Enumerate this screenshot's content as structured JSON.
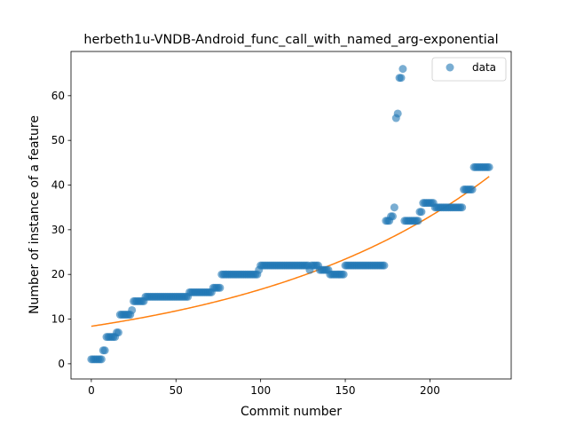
{
  "chart_data": {
    "type": "scatter",
    "title": "herbeth1u-VNDB-Android_func_call_with_named_arg-exponential",
    "xlabel": "Commit number",
    "ylabel": "Number of instance of a feature",
    "xlim": [
      -12,
      248
    ],
    "ylim": [
      -3.4,
      69.9
    ],
    "xticks": [
      0,
      50,
      100,
      150,
      200
    ],
    "yticks": [
      0,
      10,
      20,
      30,
      40,
      50,
      60
    ],
    "legend_position": "top-right",
    "grid": false,
    "colors": {
      "data": "#1f77b4",
      "fit": "#ff7f0e"
    },
    "series": [
      {
        "name": "data",
        "kind": "scatter",
        "points": [
          [
            0,
            1
          ],
          [
            1,
            1
          ],
          [
            2,
            1
          ],
          [
            3,
            1
          ],
          [
            4,
            1
          ],
          [
            5,
            1
          ],
          [
            6,
            1
          ],
          [
            7,
            3
          ],
          [
            8,
            3
          ],
          [
            9,
            6
          ],
          [
            10,
            6
          ],
          [
            11,
            6
          ],
          [
            12,
            6
          ],
          [
            13,
            6
          ],
          [
            14,
            6
          ],
          [
            15,
            7
          ],
          [
            16,
            7
          ],
          [
            17,
            11
          ],
          [
            18,
            11
          ],
          [
            19,
            11
          ],
          [
            20,
            11
          ],
          [
            21,
            11
          ],
          [
            22,
            11
          ],
          [
            23,
            11
          ],
          [
            24,
            12
          ],
          [
            25,
            14
          ],
          [
            26,
            14
          ],
          [
            27,
            14
          ],
          [
            28,
            14
          ],
          [
            29,
            14
          ],
          [
            30,
            14
          ],
          [
            31,
            14
          ],
          [
            32,
            15
          ],
          [
            33,
            15
          ],
          [
            34,
            15
          ],
          [
            35,
            15
          ],
          [
            36,
            15
          ],
          [
            37,
            15
          ],
          [
            38,
            15
          ],
          [
            39,
            15
          ],
          [
            40,
            15
          ],
          [
            41,
            15
          ],
          [
            42,
            15
          ],
          [
            43,
            15
          ],
          [
            44,
            15
          ],
          [
            45,
            15
          ],
          [
            46,
            15
          ],
          [
            47,
            15
          ],
          [
            48,
            15
          ],
          [
            49,
            15
          ],
          [
            50,
            15
          ],
          [
            51,
            15
          ],
          [
            52,
            15
          ],
          [
            53,
            15
          ],
          [
            54,
            15
          ],
          [
            55,
            15
          ],
          [
            56,
            15
          ],
          [
            57,
            15
          ],
          [
            58,
            16
          ],
          [
            59,
            16
          ],
          [
            60,
            16
          ],
          [
            61,
            16
          ],
          [
            62,
            16
          ],
          [
            63,
            16
          ],
          [
            64,
            16
          ],
          [
            65,
            16
          ],
          [
            66,
            16
          ],
          [
            67,
            16
          ],
          [
            68,
            16
          ],
          [
            69,
            16
          ],
          [
            70,
            16
          ],
          [
            71,
            16
          ],
          [
            72,
            17
          ],
          [
            73,
            17
          ],
          [
            74,
            17
          ],
          [
            75,
            17
          ],
          [
            76,
            17
          ],
          [
            77,
            20
          ],
          [
            78,
            20
          ],
          [
            79,
            20
          ],
          [
            80,
            20
          ],
          [
            81,
            20
          ],
          [
            82,
            20
          ],
          [
            83,
            20
          ],
          [
            84,
            20
          ],
          [
            85,
            20
          ],
          [
            86,
            20
          ],
          [
            87,
            20
          ],
          [
            88,
            20
          ],
          [
            89,
            20
          ],
          [
            90,
            20
          ],
          [
            91,
            20
          ],
          [
            92,
            20
          ],
          [
            93,
            20
          ],
          [
            94,
            20
          ],
          [
            95,
            20
          ],
          [
            96,
            20
          ],
          [
            97,
            20
          ],
          [
            98,
            20
          ],
          [
            99,
            21
          ],
          [
            100,
            22
          ],
          [
            101,
            22
          ],
          [
            102,
            22
          ],
          [
            103,
            22
          ],
          [
            104,
            22
          ],
          [
            105,
            22
          ],
          [
            106,
            22
          ],
          [
            107,
            22
          ],
          [
            108,
            22
          ],
          [
            109,
            22
          ],
          [
            110,
            22
          ],
          [
            111,
            22
          ],
          [
            112,
            22
          ],
          [
            113,
            22
          ],
          [
            114,
            22
          ],
          [
            115,
            22
          ],
          [
            116,
            22
          ],
          [
            117,
            22
          ],
          [
            118,
            22
          ],
          [
            119,
            22
          ],
          [
            120,
            22
          ],
          [
            121,
            22
          ],
          [
            122,
            22
          ],
          [
            123,
            22
          ],
          [
            124,
            22
          ],
          [
            125,
            22
          ],
          [
            126,
            22
          ],
          [
            127,
            22
          ],
          [
            128,
            22
          ],
          [
            129,
            21
          ],
          [
            130,
            22
          ],
          [
            131,
            22
          ],
          [
            132,
            22
          ],
          [
            133,
            22
          ],
          [
            134,
            22
          ],
          [
            135,
            21
          ],
          [
            136,
            21
          ],
          [
            137,
            21
          ],
          [
            138,
            21
          ],
          [
            139,
            21
          ],
          [
            140,
            21
          ],
          [
            141,
            20
          ],
          [
            142,
            20
          ],
          [
            143,
            20
          ],
          [
            144,
            20
          ],
          [
            145,
            20
          ],
          [
            146,
            20
          ],
          [
            147,
            20
          ],
          [
            148,
            20
          ],
          [
            149,
            20
          ],
          [
            150,
            22
          ],
          [
            151,
            22
          ],
          [
            152,
            22
          ],
          [
            153,
            22
          ],
          [
            154,
            22
          ],
          [
            155,
            22
          ],
          [
            156,
            22
          ],
          [
            157,
            22
          ],
          [
            158,
            22
          ],
          [
            159,
            22
          ],
          [
            160,
            22
          ],
          [
            161,
            22
          ],
          [
            162,
            22
          ],
          [
            163,
            22
          ],
          [
            164,
            22
          ],
          [
            165,
            22
          ],
          [
            166,
            22
          ],
          [
            167,
            22
          ],
          [
            168,
            22
          ],
          [
            169,
            22
          ],
          [
            170,
            22
          ],
          [
            171,
            22
          ],
          [
            172,
            22
          ],
          [
            173,
            22
          ],
          [
            174,
            32
          ],
          [
            175,
            32
          ],
          [
            176,
            32
          ],
          [
            177,
            33
          ],
          [
            178,
            33
          ],
          [
            179,
            35
          ],
          [
            180,
            55
          ],
          [
            181,
            56
          ],
          [
            182,
            64
          ],
          [
            183,
            64
          ],
          [
            184,
            66
          ],
          [
            185,
            32
          ],
          [
            186,
            32
          ],
          [
            187,
            32
          ],
          [
            188,
            32
          ],
          [
            189,
            32
          ],
          [
            190,
            32
          ],
          [
            191,
            32
          ],
          [
            192,
            32
          ],
          [
            193,
            32
          ],
          [
            194,
            34
          ],
          [
            195,
            34
          ],
          [
            196,
            36
          ],
          [
            197,
            36
          ],
          [
            198,
            36
          ],
          [
            199,
            36
          ],
          [
            200,
            36
          ],
          [
            201,
            36
          ],
          [
            202,
            36
          ],
          [
            203,
            35
          ],
          [
            204,
            35
          ],
          [
            205,
            35
          ],
          [
            206,
            35
          ],
          [
            207,
            35
          ],
          [
            208,
            35
          ],
          [
            209,
            35
          ],
          [
            210,
            35
          ],
          [
            211,
            35
          ],
          [
            212,
            35
          ],
          [
            213,
            35
          ],
          [
            214,
            35
          ],
          [
            215,
            35
          ],
          [
            216,
            35
          ],
          [
            217,
            35
          ],
          [
            218,
            35
          ],
          [
            219,
            35
          ],
          [
            220,
            39
          ],
          [
            221,
            39
          ],
          [
            222,
            39
          ],
          [
            223,
            39
          ],
          [
            224,
            39
          ],
          [
            225,
            39
          ],
          [
            226,
            44
          ],
          [
            227,
            44
          ],
          [
            228,
            44
          ],
          [
            229,
            44
          ],
          [
            230,
            44
          ],
          [
            231,
            44
          ],
          [
            232,
            44
          ],
          [
            233,
            44
          ],
          [
            234,
            44
          ],
          [
            235,
            44
          ]
        ]
      },
      {
        "name": "",
        "kind": "line",
        "fit": {
          "model": "exponential",
          "a": 8.4,
          "b": 0.00684,
          "x_range": [
            0,
            235
          ]
        }
      }
    ]
  }
}
